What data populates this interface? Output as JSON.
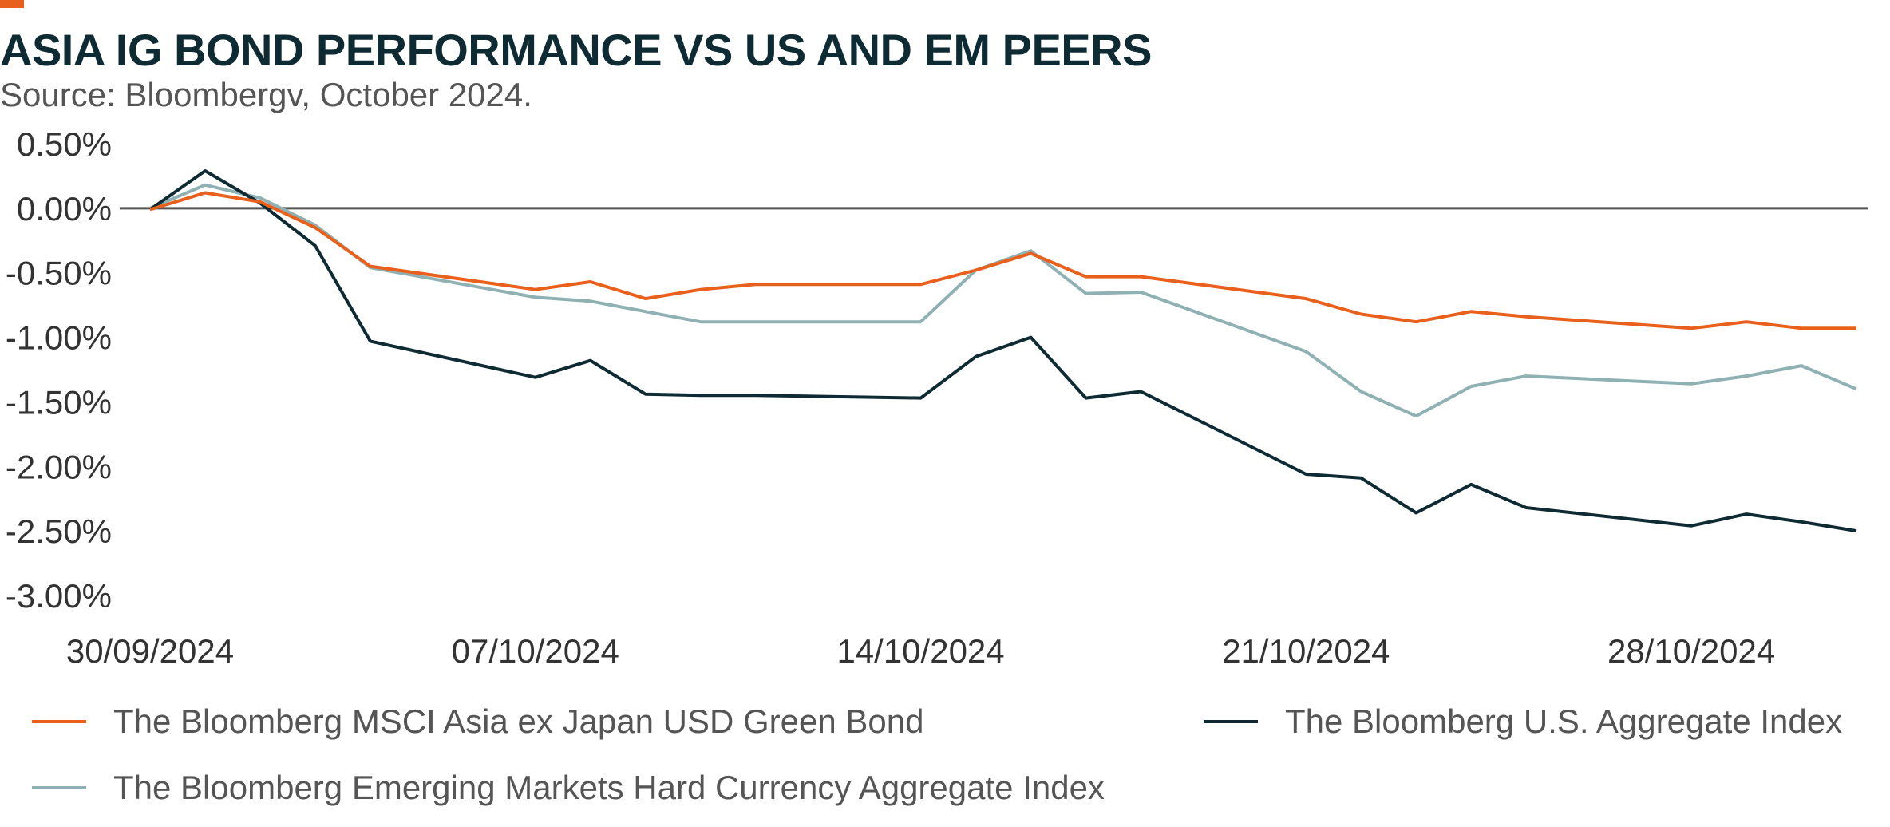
{
  "header": {
    "title": "ASIA IG BOND PERFORMANCE VS US AND EM PEERS",
    "subtitle": "Source: Bloombergv, October 2024."
  },
  "colors": {
    "accent": "#e8601c",
    "asia": "#e8601c",
    "us": "#0e2a33",
    "em": "#8fb1b3",
    "zero_line": "#555555"
  },
  "chart_data": {
    "type": "line",
    "title": "ASIA IG BOND PERFORMANCE VS US AND EM PEERS",
    "xlabel": "",
    "ylabel": "",
    "ylim": [
      -3.0,
      0.5
    ],
    "y_ticks": [
      "0.50%",
      "0.00%",
      "-0.50%",
      "-1.00%",
      "-1.50%",
      "-2.00%",
      "-2.50%",
      "-3.00%"
    ],
    "y_tick_values": [
      0.5,
      0.0,
      -0.5,
      -1.0,
      -1.5,
      -2.0,
      -2.5,
      -3.0
    ],
    "x_ticks": [
      "30/09/2024",
      "07/10/2024",
      "14/10/2024",
      "21/10/2024",
      "28/10/2024"
    ],
    "x_tick_index": [
      0,
      7,
      14,
      21,
      28
    ],
    "x": [
      "30/09/2024",
      "01/10/2024",
      "02/10/2024",
      "03/10/2024",
      "04/10/2024",
      "07/10/2024",
      "08/10/2024",
      "09/10/2024",
      "10/10/2024",
      "11/10/2024",
      "14/10/2024",
      "15/10/2024",
      "16/10/2024",
      "17/10/2024",
      "18/10/2024",
      "21/10/2024",
      "22/10/2024",
      "23/10/2024",
      "24/10/2024",
      "25/10/2024",
      "28/10/2024",
      "29/10/2024",
      "30/10/2024",
      "31/10/2024"
    ],
    "x_index": [
      0,
      1,
      2,
      3,
      4,
      7,
      8,
      9,
      10,
      11,
      14,
      15,
      16,
      17,
      18,
      21,
      22,
      23,
      24,
      25,
      28,
      29,
      30,
      31
    ],
    "grid": false,
    "legend_position": "bottom",
    "series": [
      {
        "name": "The Bloomberg MSCI Asia ex Japan USD Green Bond",
        "color": "#e8601c",
        "values": [
          -0.01,
          0.12,
          0.05,
          -0.15,
          -0.45,
          -0.63,
          -0.57,
          -0.7,
          -0.63,
          -0.59,
          -0.59,
          -0.48,
          -0.35,
          -0.53,
          -0.53,
          -0.7,
          -0.82,
          -0.88,
          -0.8,
          -0.84,
          -0.93,
          -0.88,
          -0.93,
          -0.93
        ]
      },
      {
        "name": "The Bloomberg U.S. Aggregate Index",
        "color": "#0e2a33",
        "values": [
          -0.01,
          0.29,
          0.04,
          -0.29,
          -1.03,
          -1.31,
          -1.18,
          -1.44,
          -1.45,
          -1.45,
          -1.47,
          -1.15,
          -1.0,
          -1.47,
          -1.42,
          -2.06,
          -2.09,
          -2.36,
          -2.14,
          -2.32,
          -2.46,
          -2.37,
          -2.43,
          -2.5
        ]
      },
      {
        "name": "The Bloomberg Emerging Markets Hard Currency Aggregate Index",
        "color": "#8fb1b3",
        "values": [
          0.0,
          0.18,
          0.08,
          -0.13,
          -0.46,
          -0.69,
          -0.72,
          -0.8,
          -0.88,
          -0.88,
          -0.88,
          -0.48,
          -0.33,
          -0.66,
          -0.65,
          -1.11,
          -1.42,
          -1.61,
          -1.38,
          -1.3,
          -1.36,
          -1.3,
          -1.22,
          -1.4
        ]
      }
    ]
  }
}
